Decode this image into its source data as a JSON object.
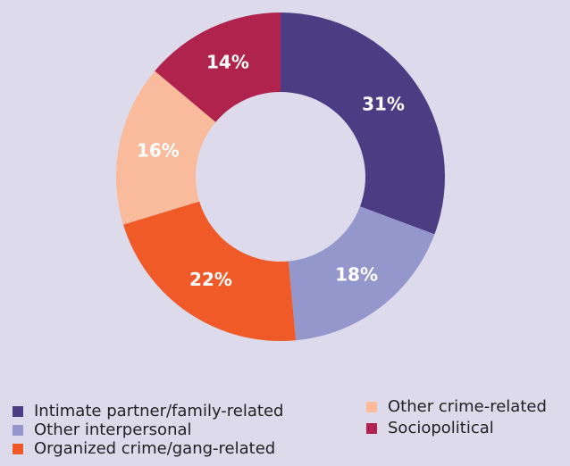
{
  "chart_data": {
    "type": "pie",
    "categories": [
      "Intimate partner/family-related",
      "Other interpersonal",
      "Organized crime/gang-related",
      "Other crime-related",
      "Sociopolitical"
    ],
    "values": [
      31,
      18,
      22,
      16,
      14
    ],
    "value_labels": [
      "31%",
      "18%",
      "22%",
      "16%",
      "14%"
    ],
    "colors": [
      "#4b3c83",
      "#9497cb",
      "#f05a28",
      "#f9bb9b",
      "#b0234d"
    ],
    "donut": true
  }
}
